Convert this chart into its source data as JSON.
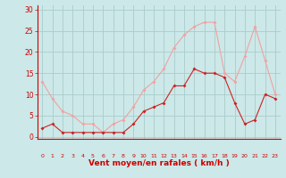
{
  "hours": [
    0,
    1,
    2,
    3,
    4,
    5,
    6,
    7,
    8,
    9,
    10,
    11,
    12,
    13,
    14,
    15,
    16,
    17,
    18,
    19,
    20,
    21,
    22,
    23
  ],
  "wind_avg": [
    2,
    3,
    1,
    1,
    1,
    1,
    1,
    1,
    1,
    3,
    6,
    7,
    8,
    12,
    12,
    16,
    15,
    15,
    14,
    8,
    3,
    4,
    10,
    9
  ],
  "wind_gust": [
    13,
    9,
    6,
    5,
    3,
    3,
    1,
    3,
    4,
    7,
    11,
    13,
    16,
    21,
    24,
    26,
    27,
    27,
    15,
    13,
    19,
    26,
    18,
    10
  ],
  "bg_color": "#cce8e8",
  "grid_color": "#aacccc",
  "avg_color": "#cc2222",
  "gust_color": "#f4a0a0",
  "xlabel": "Vent moyen/en rafales ( km/h )",
  "ylabel_ticks": [
    0,
    5,
    10,
    15,
    20,
    25,
    30
  ],
  "ylim": [
    -0.5,
    31
  ],
  "xlim": [
    -0.5,
    23.5
  ],
  "xlabel_color": "#cc0000",
  "tick_color": "#cc0000",
  "spine_color": "#cc0000"
}
